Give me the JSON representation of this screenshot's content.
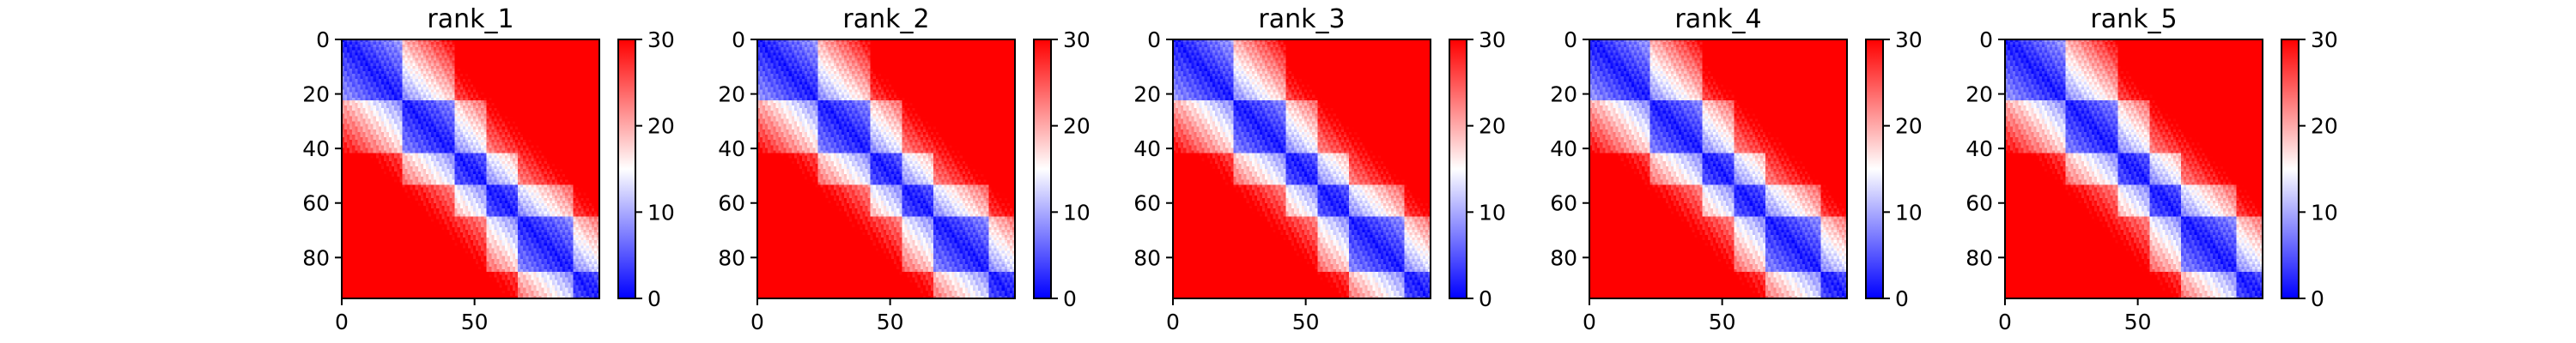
{
  "chart_data": [
    {
      "type": "heatmap",
      "title": "rank_1",
      "x_ticks": [
        0,
        50
      ],
      "y_ticks": [
        0,
        20,
        40,
        60,
        80
      ],
      "xlim": [
        0,
        97
      ],
      "ylim": [
        95,
        0
      ],
      "colorbar": {
        "ticks": [
          0,
          10,
          20,
          30
        ],
        "range": [
          0,
          30
        ]
      },
      "block_breaks": [
        23,
        43,
        55,
        67,
        88
      ]
    },
    {
      "type": "heatmap",
      "title": "rank_2",
      "x_ticks": [
        0,
        50
      ],
      "y_ticks": [
        0,
        20,
        40,
        60,
        80
      ],
      "xlim": [
        0,
        97
      ],
      "ylim": [
        95,
        0
      ],
      "colorbar": {
        "ticks": [
          0,
          10,
          20,
          30
        ],
        "range": [
          0,
          30
        ]
      },
      "block_breaks": [
        23,
        43,
        55,
        67,
        88
      ]
    },
    {
      "type": "heatmap",
      "title": "rank_3",
      "x_ticks": [
        0,
        50
      ],
      "y_ticks": [
        0,
        20,
        40,
        60,
        80
      ],
      "xlim": [
        0,
        97
      ],
      "ylim": [
        95,
        0
      ],
      "colorbar": {
        "ticks": [
          0,
          10,
          20,
          30
        ],
        "range": [
          0,
          30
        ]
      },
      "block_breaks": [
        23,
        43,
        55,
        67,
        88
      ]
    },
    {
      "type": "heatmap",
      "title": "rank_4",
      "x_ticks": [
        0,
        50
      ],
      "y_ticks": [
        0,
        20,
        40,
        60,
        80
      ],
      "xlim": [
        0,
        97
      ],
      "ylim": [
        95,
        0
      ],
      "colorbar": {
        "ticks": [
          0,
          10,
          20,
          30
        ],
        "range": [
          0,
          30
        ]
      },
      "block_breaks": [
        23,
        43,
        55,
        67,
        88
      ]
    },
    {
      "type": "heatmap",
      "title": "rank_5",
      "x_ticks": [
        0,
        50
      ],
      "y_ticks": [
        0,
        20,
        40,
        60,
        80
      ],
      "xlim": [
        0,
        97
      ],
      "ylim": [
        95,
        0
      ],
      "colorbar": {
        "ticks": [
          0,
          10,
          20,
          30
        ],
        "range": [
          0,
          30
        ]
      },
      "block_breaks": [
        23,
        43,
        55,
        67,
        88
      ]
    }
  ],
  "colors": {
    "low": "#0000ff",
    "mid": "#ffffff",
    "high": "#ff0000",
    "axis": "#000000"
  }
}
